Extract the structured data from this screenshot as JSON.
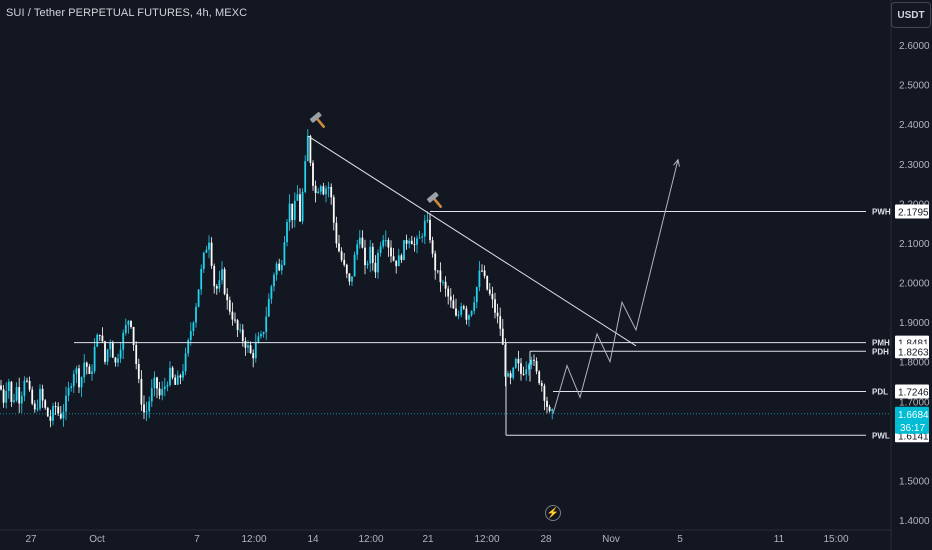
{
  "header": {
    "symbol": "SUI / Tether PERPETUAL FUTURES, 4h, MEXC",
    "currency": "USDT"
  },
  "colors": {
    "background": "#131722",
    "up": "#22d1ee",
    "down": "#ffffff",
    "line": "#e0e3eb",
    "axis_text": "#b2b5be",
    "last_price": "#00bcd4"
  },
  "icons": {
    "hammer_1": "hammer-icon",
    "hammer_2": "hammer-icon",
    "bolt": "lightning-icon"
  },
  "chart_data": {
    "type": "candlestick",
    "title": "SUI / Tether PERPETUAL FUTURES, 4h, MEXC",
    "ylabel": "USDT",
    "ylim": [
      1.4,
      2.6
    ],
    "y_ticks": [
      "2.6000",
      "2.5000",
      "2.4000",
      "2.3000",
      "2.2000",
      "2.1000",
      "2.0000",
      "1.9000",
      "1.8000",
      "1.7000",
      "1.5000",
      "1.4000"
    ],
    "x_ticks": [
      "27",
      "Oct",
      "7",
      "12:00",
      "14",
      "12:00",
      "21",
      "12:00",
      "28",
      "Nov",
      "5",
      "11",
      "15:00"
    ],
    "price_path": [
      [
        0,
        1.74
      ],
      [
        4,
        1.7
      ],
      [
        8,
        1.77
      ],
      [
        12,
        1.68
      ],
      [
        16,
        1.74
      ],
      [
        20,
        1.7
      ],
      [
        25,
        1.77
      ],
      [
        30,
        1.71
      ],
      [
        35,
        1.67
      ],
      [
        40,
        1.72
      ],
      [
        45,
        1.68
      ],
      [
        50,
        1.65
      ],
      [
        55,
        1.69
      ],
      [
        60,
        1.66
      ],
      [
        65,
        1.69
      ],
      [
        70,
        1.74
      ],
      [
        75,
        1.79
      ],
      [
        80,
        1.74
      ],
      [
        85,
        1.81
      ],
      [
        90,
        1.75
      ],
      [
        95,
        1.84
      ],
      [
        100,
        1.88
      ],
      [
        105,
        1.8
      ],
      [
        110,
        1.86
      ],
      [
        115,
        1.79
      ],
      [
        120,
        1.84
      ],
      [
        125,
        1.88
      ],
      [
        130,
        1.92
      ],
      [
        135,
        1.82
      ],
      [
        140,
        1.72
      ],
      [
        145,
        1.66
      ],
      [
        150,
        1.71
      ],
      [
        155,
        1.75
      ],
      [
        160,
        1.71
      ],
      [
        165,
        1.74
      ],
      [
        170,
        1.77
      ],
      [
        175,
        1.74
      ],
      [
        180,
        1.76
      ],
      [
        185,
        1.8
      ],
      [
        190,
        1.87
      ],
      [
        195,
        1.93
      ],
      [
        200,
        2.01
      ],
      [
        205,
        2.08
      ],
      [
        210,
        2.12
      ],
      [
        213,
        2.0
      ],
      [
        218,
        1.98
      ],
      [
        222,
        2.02
      ],
      [
        227,
        1.95
      ],
      [
        232,
        1.92
      ],
      [
        237,
        1.88
      ],
      [
        242,
        1.86
      ],
      [
        247,
        1.84
      ],
      [
        252,
        1.81
      ],
      [
        257,
        1.85
      ],
      [
        262,
        1.86
      ],
      [
        267,
        1.93
      ],
      [
        272,
        2.0
      ],
      [
        276,
        2.05
      ],
      [
        280,
        2.02
      ],
      [
        285,
        2.13
      ],
      [
        289,
        2.2
      ],
      [
        293,
        2.16
      ],
      [
        297,
        2.23
      ],
      [
        300,
        2.16
      ],
      [
        304,
        2.26
      ],
      [
        308,
        2.37
      ],
      [
        312,
        2.27
      ],
      [
        316,
        2.22
      ],
      [
        320,
        2.26
      ],
      [
        324,
        2.23
      ],
      [
        328,
        2.25
      ],
      [
        332,
        2.2
      ],
      [
        335,
        2.12
      ],
      [
        340,
        2.07
      ],
      [
        345,
        2.03
      ],
      [
        350,
        1.99
      ],
      [
        355,
        2.07
      ],
      [
        360,
        2.13
      ],
      [
        365,
        2.03
      ],
      [
        370,
        2.08
      ],
      [
        375,
        2.03
      ],
      [
        380,
        2.1
      ],
      [
        385,
        2.13
      ],
      [
        390,
        2.08
      ],
      [
        395,
        2.05
      ],
      [
        400,
        2.06
      ],
      [
        405,
        2.1
      ],
      [
        410,
        2.12
      ],
      [
        415,
        2.09
      ],
      [
        420,
        2.11
      ],
      [
        425,
        2.15
      ],
      [
        429,
        2.14
      ],
      [
        432,
        2.07
      ],
      [
        437,
        2.02
      ],
      [
        442,
        2.0
      ],
      [
        447,
        1.97
      ],
      [
        452,
        1.94
      ],
      [
        457,
        1.9
      ],
      [
        462,
        1.96
      ],
      [
        467,
        1.91
      ],
      [
        472,
        1.94
      ],
      [
        477,
        1.99
      ],
      [
        481,
        2.04
      ],
      [
        486,
        1.99
      ],
      [
        491,
        1.96
      ],
      [
        496,
        1.92
      ],
      [
        501,
        1.88
      ],
      [
        506,
        1.76
      ],
      [
        511,
        1.75
      ],
      [
        516,
        1.8
      ],
      [
        521,
        1.77
      ],
      [
        526,
        1.79
      ],
      [
        531,
        1.82
      ],
      [
        536,
        1.77
      ],
      [
        541,
        1.75
      ],
      [
        546,
        1.7
      ],
      [
        550,
        1.66
      ],
      [
        553,
        1.668
      ]
    ],
    "levels": [
      {
        "label": "PWH",
        "value": "2.1795"
      },
      {
        "label": "PMH",
        "value": "1.8481"
      },
      {
        "label": "PDH",
        "value": "1.8263"
      },
      {
        "label": "PDL",
        "value": "1.7246"
      },
      {
        "label": "PWL",
        "value": "1.6141"
      }
    ],
    "last_price": "1.6684",
    "countdown": "36:17",
    "trendline": {
      "from": [
        308,
        2.37
      ],
      "to": [
        636,
        1.84
      ]
    },
    "projection": [
      [
        553,
        1.668
      ],
      [
        567,
        1.79
      ],
      [
        580,
        1.71
      ],
      [
        597,
        1.87
      ],
      [
        610,
        1.8
      ],
      [
        622,
        1.95
      ],
      [
        636,
        1.88
      ],
      [
        678,
        2.31
      ]
    ]
  }
}
